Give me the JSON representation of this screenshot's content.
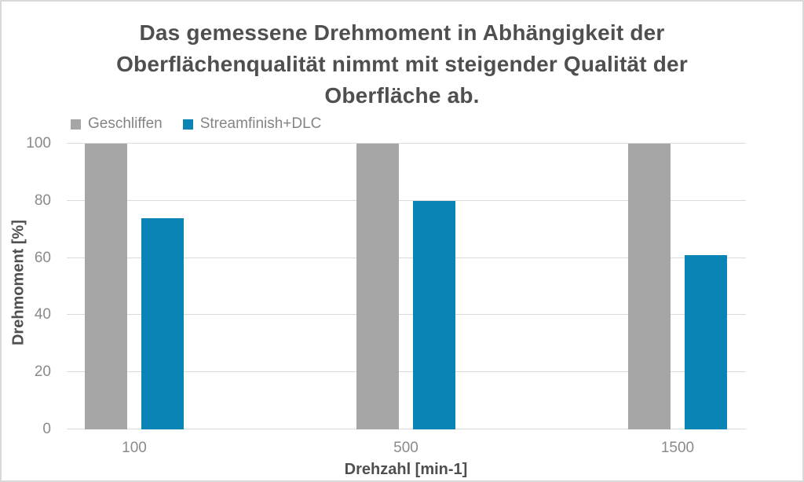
{
  "chart_data": {
    "type": "bar",
    "title": "Das gemessene Drehmoment in Abhängigkeit der Oberflächenqualität nimmt mit steigender Qualität der Oberfläche ab.",
    "title_lines": [
      "Das gemessene Drehmoment in Abhängigkeit der",
      "Oberflächenqualität nimmt mit steigender Qualität der",
      "Oberfläche ab."
    ],
    "categories": [
      "100",
      "500",
      "1500"
    ],
    "series": [
      {
        "name": "Geschliffen",
        "color": "#a6a6a6",
        "values": [
          100,
          100,
          100
        ]
      },
      {
        "name": "Streamfinish+DLC",
        "color": "#0a84b5",
        "values": [
          74,
          80,
          61
        ]
      }
    ],
    "xlabel": "Drehzahl [min-1]",
    "ylabel": "Drehmoment [%]",
    "ylim": [
      0,
      100
    ],
    "yticks": [
      "100",
      "80",
      "60",
      "40",
      "20",
      "0"
    ],
    "grid": "horizontal",
    "legend_position": "top-left",
    "colors": {
      "title_text": "#4f4f4f",
      "tick_text": "#8a8a8a",
      "gridline": "#dadada",
      "background": "#ffffff",
      "border": "#d9d9d9"
    }
  }
}
